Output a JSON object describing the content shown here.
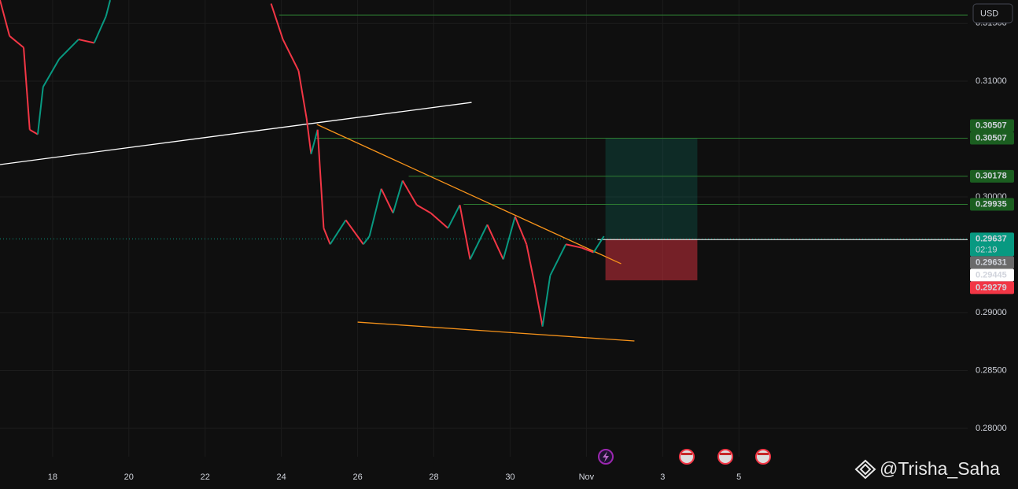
{
  "chart_data": {
    "type": "line",
    "currency": "USD",
    "x": [
      -1.38,
      -1.13,
      -0.76,
      -0.6,
      -0.39,
      -0.25,
      0.17,
      0.68,
      1.09,
      1.4,
      1.51,
      3.57,
      5.73,
      6.04,
      6.45,
      6.66,
      6.78,
      6.95,
      7.11,
      7.28,
      7.69,
      8.15,
      8.31,
      8.62,
      8.93,
      9.18,
      9.55,
      9.92,
      10.37,
      10.68,
      10.95,
      11.4,
      11.82,
      12.13,
      12.43,
      12.64,
      12.85,
      13.05,
      13.46,
      13.88,
      14.19,
      14.46
    ],
    "values": [
      0.317,
      0.3139,
      0.3129,
      0.3058,
      0.3054,
      0.3095,
      0.3119,
      0.3136,
      0.3133,
      0.3156,
      0.317,
      null,
      0.3167,
      0.3136,
      0.3109,
      0.3068,
      0.3037,
      0.3058,
      0.2973,
      0.2959,
      0.298,
      0.2959,
      0.2966,
      0.3007,
      0.2986,
      0.3014,
      0.2993,
      0.2986,
      0.2973,
      0.2993,
      0.2946,
      0.2976,
      0.2946,
      0.2983,
      0.2959,
      0.2925,
      0.2888,
      0.2932,
      0.2959,
      0.2956,
      0.2952,
      0.2966
    ],
    "up_color": "#089981",
    "down_color": "#f23645",
    "xlim": [
      -1.38,
      24.0
    ],
    "xticks": [
      {
        "value": 0,
        "label": "18"
      },
      {
        "value": 2,
        "label": "20"
      },
      {
        "value": 4,
        "label": "22"
      },
      {
        "value": 6,
        "label": "24"
      },
      {
        "value": 8,
        "label": "26"
      },
      {
        "value": 10,
        "label": "28"
      },
      {
        "value": 12,
        "label": "30"
      },
      {
        "value": 14,
        "label": "Nov"
      },
      {
        "value": 16,
        "label": "3"
      },
      {
        "value": 18,
        "label": "5"
      }
    ],
    "ylim": [
      0.277551,
      0.317007
    ],
    "yticks": [
      {
        "value": 0.28,
        "label": "0.28000"
      },
      {
        "value": 0.285,
        "label": "0.28500"
      },
      {
        "value": 0.29,
        "label": "0.29000"
      },
      {
        "value": 0.3,
        "label": "0.30000"
      },
      {
        "value": 0.31,
        "label": "0.31000"
      },
      {
        "value": 0.315,
        "label": "0.31500"
      }
    ],
    "grid": true,
    "trendlines": [
      {
        "color": "#ffffff",
        "x": [
          -1.38,
          10.99
        ],
        "values": [
          0.30279,
          0.30816
        ]
      },
      {
        "color": "#f7931a",
        "x": [
          6.93,
          14.91
        ],
        "values": [
          0.30626,
          0.29422
        ]
      },
      {
        "color": "#f7931a",
        "x": [
          8.0,
          15.26
        ],
        "values": [
          0.28918,
          0.28755
        ]
      }
    ],
    "levels": [
      {
        "value": 0.31571,
        "from": 5.94,
        "color": "#2e7d32"
      },
      {
        "value": 0.30507,
        "from": 6.87,
        "color": "#2e7d32"
      },
      {
        "value": 0.30178,
        "from": 9.34,
        "color": "#2e7d32"
      },
      {
        "value": 0.29935,
        "from": 10.78,
        "color": "#2e7d32"
      },
      {
        "value": 0.29631,
        "from": 14.29,
        "color": "#ffffff"
      }
    ],
    "position": {
      "x": [
        14.5,
        16.91
      ],
      "entry": 0.29637,
      "target": 0.30507,
      "stop": 0.29279
    },
    "last_price": 0.29637,
    "badges": [
      {
        "label": "0.30507",
        "value": 0.30507,
        "color": "#1b5e20",
        "text_color": "#ffffff"
      },
      {
        "label": "0.30507",
        "value": 0.30507,
        "color": "#1b5e20",
        "text_color": "#ffffff"
      },
      {
        "label": "0.30178",
        "value": 0.30178,
        "color": "#1b5e20",
        "text_color": "#ffffff"
      },
      {
        "label": "0.29935",
        "value": 0.29935,
        "color": "#1b5e20",
        "text_color": "#ffffff"
      },
      {
        "label": "0.29637",
        "value": 0.29637,
        "color": "#089981",
        "text_color": "#ffffff",
        "countdown": "02:19"
      },
      {
        "label": "0.29631",
        "value": 0.29631,
        "color": "#6a6a6a",
        "text_color": "#ffffff"
      },
      {
        "label": "0.29445",
        "value": 0.29445,
        "color": "#ffffff",
        "text_color": "#131722"
      },
      {
        "label": "0.29279",
        "value": 0.29279,
        "color": "#f23645",
        "text_color": "#ffffff"
      }
    ]
  },
  "watermark": "@Trisha_Saha"
}
